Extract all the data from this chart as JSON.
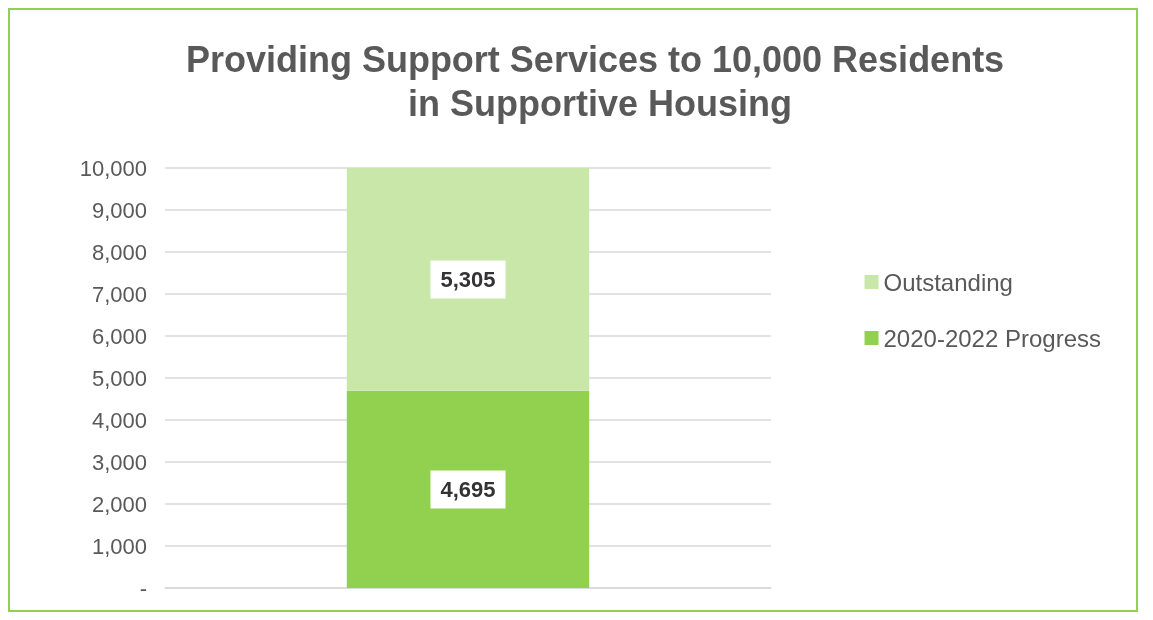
{
  "chart_data": {
    "type": "bar",
    "title": "Providing Support Services to 10,000 Residents in Supportive Housing",
    "stacked": true,
    "categories": [
      null
    ],
    "series": [
      {
        "name": "2020-2022 Progress",
        "color": "#92d050",
        "values": [
          4695
        ],
        "value_labels": [
          "4,695"
        ]
      },
      {
        "name": "Outstanding",
        "color": "#c9e7a9",
        "values": [
          5305
        ],
        "value_labels": [
          "5,305"
        ]
      }
    ],
    "ylim": [
      0,
      10000
    ],
    "yticks": [
      {
        "value": 0,
        "label": "-"
      },
      {
        "value": 1000,
        "label": "1,000"
      },
      {
        "value": 2000,
        "label": "2,000"
      },
      {
        "value": 3000,
        "label": "3,000"
      },
      {
        "value": 4000,
        "label": "4,000"
      },
      {
        "value": 5000,
        "label": "5,000"
      },
      {
        "value": 6000,
        "label": "6,000"
      },
      {
        "value": 7000,
        "label": "7,000"
      },
      {
        "value": 8000,
        "label": "8,000"
      },
      {
        "value": 9000,
        "label": "9,000"
      },
      {
        "value": 10000,
        "label": "10,000"
      }
    ],
    "grid": "y",
    "legend": "right"
  }
}
